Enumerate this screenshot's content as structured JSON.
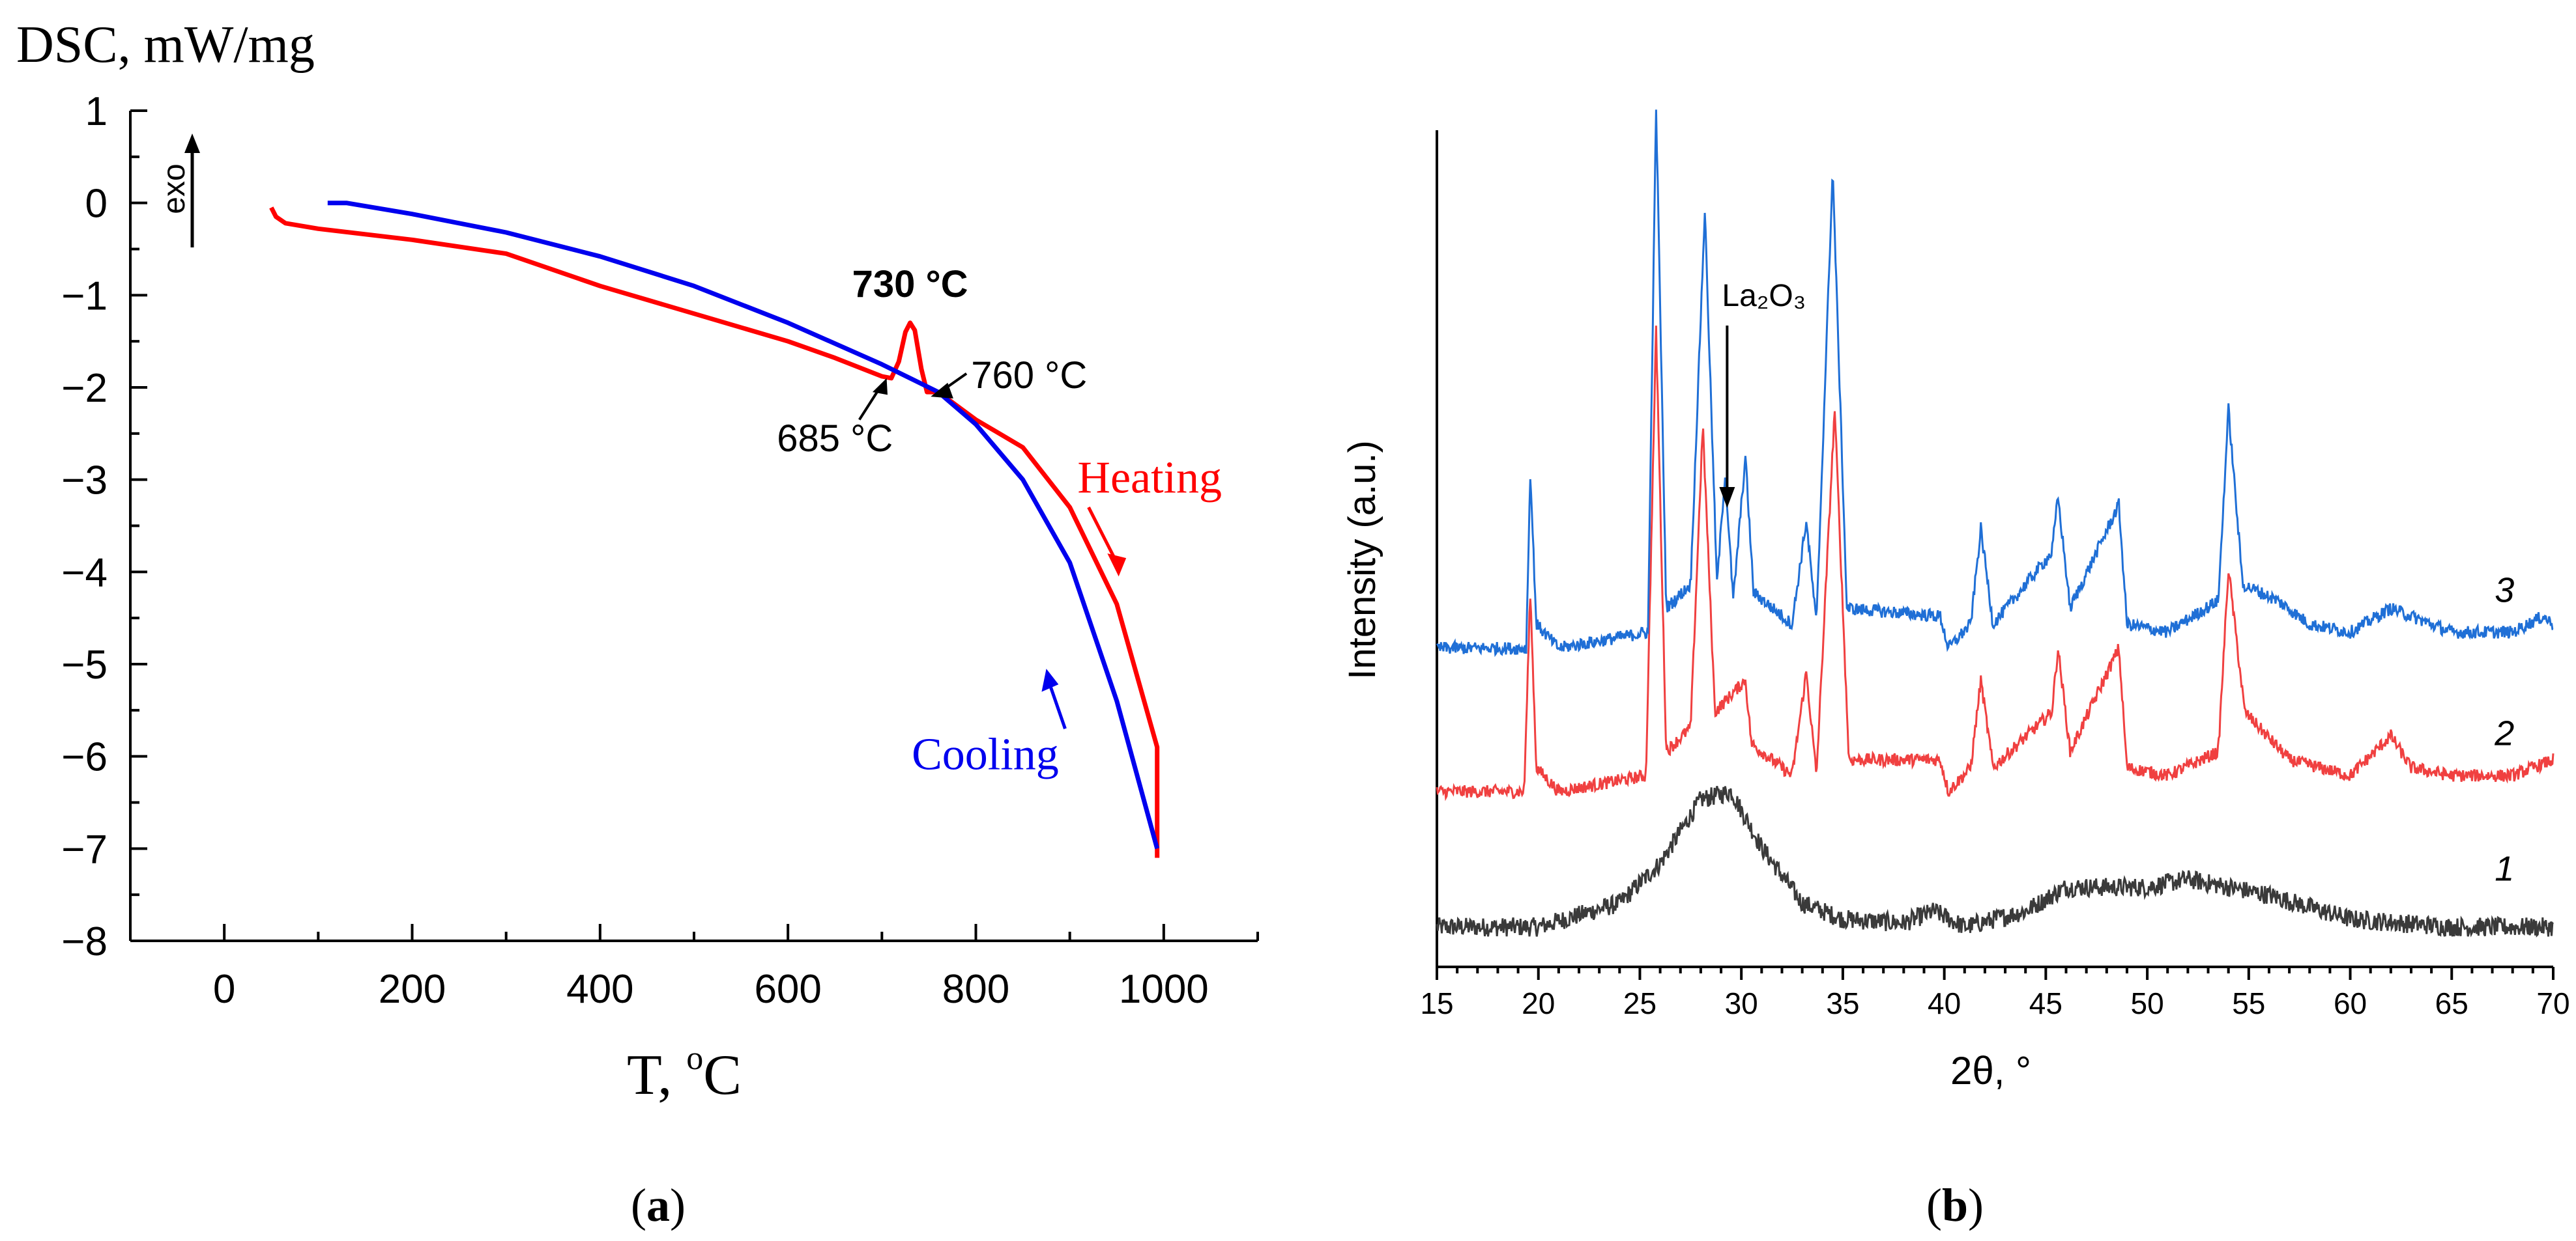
{
  "chart_data": [
    {
      "id": "a",
      "type": "line",
      "panel_label": "(a)",
      "panel_letter": "a",
      "ylabel": "DSC, mW/mg",
      "xlabel": "T, °C",
      "xlim": [
        -100,
        1100
      ],
      "ylim": [
        -8,
        1
      ],
      "xticks": [
        0,
        200,
        400,
        600,
        800,
        1000
      ],
      "yticks": [
        1,
        0,
        -1,
        -2,
        -3,
        -4,
        -5,
        -6,
        -7,
        -8
      ],
      "tick_labels_x": [
        "0",
        "200",
        "400",
        "600",
        "800",
        "1000"
      ],
      "tick_labels_y": [
        "1",
        "0",
        "−1",
        "−2",
        "−3",
        "−4",
        "−5",
        "−6",
        "−7",
        "−8"
      ],
      "exo_label": "exo",
      "series": [
        {
          "name": "Heating",
          "color": "#ff0000",
          "points": [
            [
              50,
              -0.05
            ],
            [
              55,
              -0.15
            ],
            [
              65,
              -0.22
            ],
            [
              100,
              -0.28
            ],
            [
              200,
              -0.4
            ],
            [
              300,
              -0.55
            ],
            [
              400,
              -0.9
            ],
            [
              500,
              -1.2
            ],
            [
              600,
              -1.5
            ],
            [
              650,
              -1.68
            ],
            [
              700,
              -1.88
            ],
            [
              710,
              -1.9
            ],
            [
              718,
              -1.72
            ],
            [
              725,
              -1.4
            ],
            [
              730,
              -1.3
            ],
            [
              735,
              -1.38
            ],
            [
              742,
              -1.8
            ],
            [
              748,
              -2.05
            ],
            [
              760,
              -2.05
            ],
            [
              800,
              -2.35
            ],
            [
              850,
              -2.65
            ],
            [
              900,
              -3.3
            ],
            [
              950,
              -4.35
            ],
            [
              993,
              -5.9
            ],
            [
              993,
              -7.1
            ]
          ]
        },
        {
          "name": "Cooling",
          "color": "#0000ee",
          "points": [
            [
              110,
              0.0
            ],
            [
              130,
              0.0
            ],
            [
              200,
              -0.12
            ],
            [
              300,
              -0.32
            ],
            [
              400,
              -0.58
            ],
            [
              500,
              -0.9
            ],
            [
              600,
              -1.3
            ],
            [
              700,
              -1.75
            ],
            [
              760,
              -2.05
            ],
            [
              800,
              -2.4
            ],
            [
              850,
              -3.0
            ],
            [
              900,
              -3.9
            ],
            [
              950,
              -5.4
            ],
            [
              993,
              -7.0
            ]
          ]
        }
      ],
      "annotations": [
        {
          "text": "730 °C",
          "x": 730,
          "y": -1.3
        },
        {
          "text": "760 °C",
          "x": 760,
          "y": -2.0
        },
        {
          "text": "685 °C",
          "x": 685,
          "y": -1.95
        },
        {
          "text": "Heating",
          "series": "Heating"
        },
        {
          "text": "Cooling",
          "series": "Cooling"
        }
      ]
    },
    {
      "id": "b",
      "type": "line",
      "panel_label": "(b)",
      "panel_letter": "b",
      "ylabel": "Intensity (a.u.)",
      "xlabel": "2θ, °",
      "xlim": [
        15,
        70
      ],
      "ylim": [
        -0.05,
        1.0
      ],
      "xticks": [
        15,
        20,
        25,
        30,
        35,
        40,
        45,
        50,
        55,
        60,
        65,
        70
      ],
      "tick_labels_x": [
        "15",
        "20",
        "25",
        "30",
        "35",
        "40",
        "45",
        "50",
        "55",
        "60",
        "65",
        "70"
      ],
      "annotation": {
        "text": "La₂O₃",
        "two_theta": 29.3
      },
      "series": [
        {
          "name": "1",
          "label": "1",
          "color": "#3a3a3a",
          "offset": 0.0,
          "noise": 0.012,
          "points": [
            [
              15,
              0.0
            ],
            [
              20,
              0.0
            ],
            [
              24,
              0.03
            ],
            [
              26,
              0.08
            ],
            [
              28,
              0.16
            ],
            [
              29.5,
              0.17
            ],
            [
              31,
              0.1
            ],
            [
              33,
              0.03
            ],
            [
              35,
              0.01
            ],
            [
              38,
              0.005
            ],
            [
              39.5,
              0.02
            ],
            [
              41,
              0.0
            ],
            [
              44,
              0.02
            ],
            [
              46,
              0.05
            ],
            [
              48,
              0.05
            ],
            [
              50,
              0.05
            ],
            [
              52,
              0.06
            ],
            [
              54,
              0.05
            ],
            [
              56,
              0.04
            ],
            [
              60,
              0.01
            ],
            [
              65,
              0.0
            ],
            [
              70,
              0.0
            ]
          ]
        },
        {
          "name": "2",
          "label": "2",
          "color": "#f04040",
          "offset": 0.17,
          "noise": 0.008,
          "points": [
            [
              15,
              0.0
            ],
            [
              19.3,
              0.0
            ],
            [
              19.6,
              0.25
            ],
            [
              19.9,
              0.03
            ],
            [
              21,
              0.0
            ],
            [
              25.3,
              0.02
            ],
            [
              25.8,
              0.58
            ],
            [
              26.3,
              0.05
            ],
            [
              27.5,
              0.08
            ],
            [
              28.1,
              0.46
            ],
            [
              28.7,
              0.1
            ],
            [
              30.2,
              0.14
            ],
            [
              30.5,
              0.06
            ],
            [
              32.5,
              0.02
            ],
            [
              33.2,
              0.15
            ],
            [
              33.7,
              0.02
            ],
            [
              34.6,
              0.48
            ],
            [
              35.3,
              0.04
            ],
            [
              39.8,
              0.04
            ],
            [
              40.2,
              0.0
            ],
            [
              41.3,
              0.03
            ],
            [
              41.8,
              0.14
            ],
            [
              42.4,
              0.03
            ],
            [
              45.3,
              0.1
            ],
            [
              45.6,
              0.18
            ],
            [
              46.2,
              0.05
            ],
            [
              48.6,
              0.18
            ],
            [
              49.0,
              0.03
            ],
            [
              51,
              0.02
            ],
            [
              53.5,
              0.05
            ],
            [
              54.0,
              0.28
            ],
            [
              54.8,
              0.1
            ],
            [
              57,
              0.04
            ],
            [
              60,
              0.02
            ],
            [
              62,
              0.07
            ],
            [
              63,
              0.03
            ],
            [
              65,
              0.02
            ],
            [
              68,
              0.02
            ],
            [
              70,
              0.04
            ]
          ]
        },
        {
          "name": "3",
          "label": "3",
          "color": "#1f6fd6",
          "offset": 0.35,
          "noise": 0.008,
          "points": [
            [
              15,
              0.0
            ],
            [
              19.4,
              0.0
            ],
            [
              19.6,
              0.22
            ],
            [
              19.9,
              0.03
            ],
            [
              21,
              0.0
            ],
            [
              25.4,
              0.02
            ],
            [
              25.8,
              0.68
            ],
            [
              26.3,
              0.05
            ],
            [
              27.5,
              0.08
            ],
            [
              28.2,
              0.55
            ],
            [
              28.8,
              0.08
            ],
            [
              29.2,
              0.22
            ],
            [
              29.6,
              0.06
            ],
            [
              30.2,
              0.24
            ],
            [
              30.6,
              0.07
            ],
            [
              32.5,
              0.03
            ],
            [
              33.2,
              0.16
            ],
            [
              33.7,
              0.03
            ],
            [
              34.5,
              0.6
            ],
            [
              35.2,
              0.05
            ],
            [
              39.8,
              0.04
            ],
            [
              40.2,
              0.0
            ],
            [
              41.3,
              0.03
            ],
            [
              41.8,
              0.15
            ],
            [
              42.4,
              0.03
            ],
            [
              45.3,
              0.12
            ],
            [
              45.6,
              0.19
            ],
            [
              46.2,
              0.05
            ],
            [
              48.6,
              0.18
            ],
            [
              49.0,
              0.03
            ],
            [
              51,
              0.02
            ],
            [
              53.5,
              0.06
            ],
            [
              54.0,
              0.3
            ],
            [
              54.7,
              0.08
            ],
            [
              56.4,
              0.06
            ],
            [
              58,
              0.03
            ],
            [
              60,
              0.02
            ],
            [
              62,
              0.05
            ],
            [
              63,
              0.04
            ],
            [
              65,
              0.02
            ],
            [
              68,
              0.02
            ],
            [
              69.5,
              0.04
            ],
            [
              70,
              0.03
            ]
          ]
        }
      ]
    }
  ]
}
